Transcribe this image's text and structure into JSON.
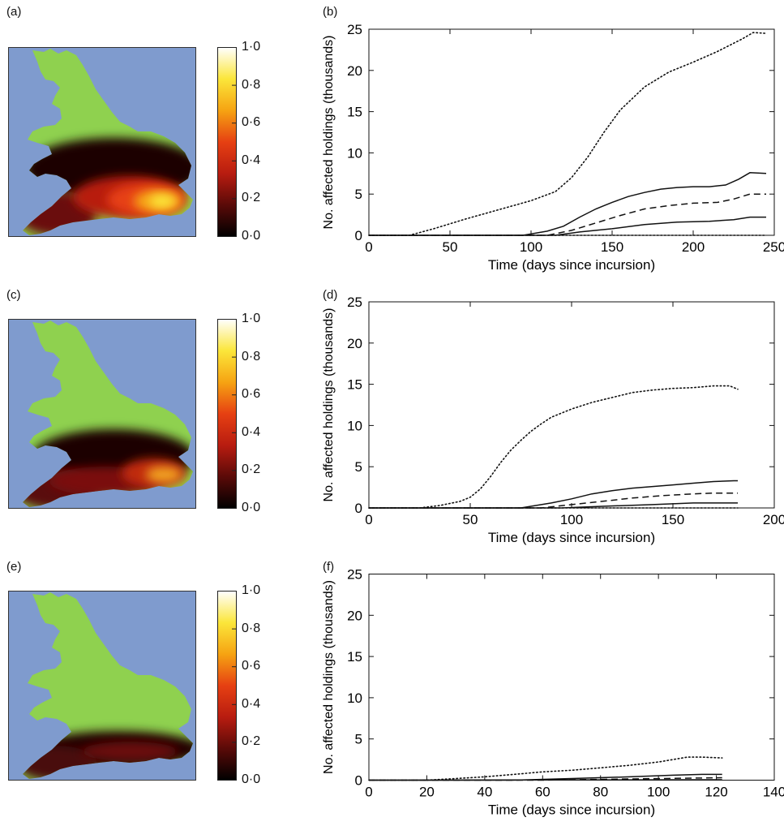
{
  "panel_labels": {
    "a": "(a)",
    "b": "(b)",
    "c": "(c)",
    "d": "(d)",
    "e": "(e)",
    "f": "(f)"
  },
  "colorbar": {
    "ticks": [
      "1·0",
      "0·8",
      "0·6",
      "0·4",
      "0·2",
      "0·0"
    ]
  },
  "colors": {
    "sea": "#7f9bce",
    "land": "#8fd14f",
    "map_frame": "#333333",
    "heat_scale": [
      "#000000",
      "#5a0a08",
      "#b81c10",
      "#e64012",
      "#f6a312",
      "#fbe63a",
      "#ffffff"
    ]
  },
  "chart_data": [
    {
      "type": "line",
      "panel": "b",
      "ylabel": "No. affected holdings (thousands)",
      "xlabel": "Time (days since incursion)",
      "xlim": [
        0,
        250
      ],
      "ylim": [
        0,
        25
      ],
      "xticks": [
        0,
        50,
        100,
        150,
        200,
        250
      ],
      "yticks": [
        0,
        5,
        10,
        15,
        20,
        25
      ],
      "series": [
        {
          "style": "dotted",
          "x": [
            0,
            25,
            40,
            60,
            80,
            100,
            115,
            125,
            135,
            145,
            155,
            170,
            185,
            200,
            215,
            230,
            237,
            245
          ],
          "y": [
            0,
            0,
            0.8,
            2.0,
            3.1,
            4.2,
            5.3,
            7.0,
            9.5,
            12.5,
            15.2,
            18.0,
            19.8,
            21.0,
            22.3,
            23.8,
            24.6,
            24.5
          ]
        },
        {
          "style": "solid",
          "x": [
            0,
            95,
            110,
            120,
            130,
            140,
            150,
            160,
            170,
            180,
            190,
            200,
            210,
            220,
            228,
            235,
            245
          ],
          "y": [
            0,
            0,
            0.5,
            1.1,
            2.2,
            3.2,
            4.0,
            4.7,
            5.2,
            5.6,
            5.8,
            5.9,
            5.9,
            6.1,
            6.8,
            7.6,
            7.5
          ]
        },
        {
          "style": "dashed",
          "x": [
            0,
            110,
            125,
            140,
            155,
            170,
            185,
            200,
            215,
            225,
            235,
            245
          ],
          "y": [
            0,
            0,
            0.6,
            1.5,
            2.4,
            3.2,
            3.6,
            3.9,
            4.0,
            4.4,
            5.0,
            5.0
          ]
        },
        {
          "style": "solid",
          "x": [
            0,
            115,
            130,
            150,
            170,
            190,
            210,
            225,
            235,
            245
          ],
          "y": [
            0,
            0,
            0.4,
            0.8,
            1.3,
            1.6,
            1.7,
            1.9,
            2.2,
            2.2
          ]
        },
        {
          "style": "dotted",
          "x": [
            0,
            245
          ],
          "y": [
            0,
            0
          ]
        }
      ]
    },
    {
      "type": "line",
      "panel": "d",
      "ylabel": "No. affected holdings (thousands)",
      "xlabel": "Time (days since incursion)",
      "xlim": [
        0,
        200
      ],
      "ylim": [
        0,
        25
      ],
      "xticks": [
        0,
        50,
        100,
        150,
        200
      ],
      "yticks": [
        0,
        5,
        10,
        15,
        20,
        25
      ],
      "series": [
        {
          "style": "dotted",
          "x": [
            0,
            25,
            35,
            45,
            50,
            55,
            60,
            65,
            70,
            75,
            80,
            85,
            90,
            100,
            110,
            120,
            130,
            140,
            150,
            160,
            170,
            178,
            182
          ],
          "y": [
            0,
            0,
            0.3,
            0.8,
            1.3,
            2.3,
            3.8,
            5.5,
            7.0,
            8.2,
            9.3,
            10.2,
            11.0,
            12.0,
            12.8,
            13.4,
            14.0,
            14.3,
            14.5,
            14.6,
            14.8,
            14.8,
            14.4
          ]
        },
        {
          "style": "solid",
          "x": [
            0,
            75,
            90,
            100,
            110,
            120,
            130,
            140,
            150,
            160,
            170,
            180,
            182
          ],
          "y": [
            0,
            0,
            0.6,
            1.1,
            1.7,
            2.1,
            2.4,
            2.6,
            2.8,
            3.0,
            3.2,
            3.3,
            3.3
          ]
        },
        {
          "style": "dashed",
          "x": [
            0,
            85,
            100,
            115,
            130,
            145,
            160,
            170,
            182
          ],
          "y": [
            0,
            0,
            0.4,
            0.8,
            1.2,
            1.5,
            1.7,
            1.8,
            1.8
          ]
        },
        {
          "style": "solid",
          "x": [
            0,
            95,
            115,
            140,
            160,
            182
          ],
          "y": [
            0,
            0,
            0.2,
            0.4,
            0.6,
            0.6
          ]
        },
        {
          "style": "dotted",
          "x": [
            0,
            182
          ],
          "y": [
            0,
            0
          ]
        }
      ]
    },
    {
      "type": "line",
      "panel": "f",
      "ylabel": "No. affected holdings (thousands)",
      "xlabel": "Time (days since incursion)",
      "xlim": [
        0,
        140
      ],
      "ylim": [
        0,
        25
      ],
      "xticks": [
        0,
        20,
        40,
        60,
        80,
        100,
        120,
        140
      ],
      "yticks": [
        0,
        5,
        10,
        15,
        20,
        25
      ],
      "series": [
        {
          "style": "dotted",
          "x": [
            0,
            20,
            30,
            40,
            50,
            60,
            70,
            80,
            90,
            100,
            105,
            110,
            115,
            122
          ],
          "y": [
            0,
            0,
            0.2,
            0.4,
            0.7,
            1.0,
            1.2,
            1.5,
            1.8,
            2.2,
            2.5,
            2.8,
            2.8,
            2.7
          ]
        },
        {
          "style": "solid",
          "x": [
            0,
            50,
            70,
            90,
            105,
            115,
            122
          ],
          "y": [
            0,
            0,
            0.2,
            0.4,
            0.6,
            0.7,
            0.7
          ]
        },
        {
          "style": "dashed",
          "x": [
            0,
            60,
            90,
            122
          ],
          "y": [
            0,
            0,
            0.15,
            0.3
          ]
        },
        {
          "style": "solid",
          "x": [
            0,
            122
          ],
          "y": [
            0,
            0.05
          ]
        }
      ]
    }
  ]
}
